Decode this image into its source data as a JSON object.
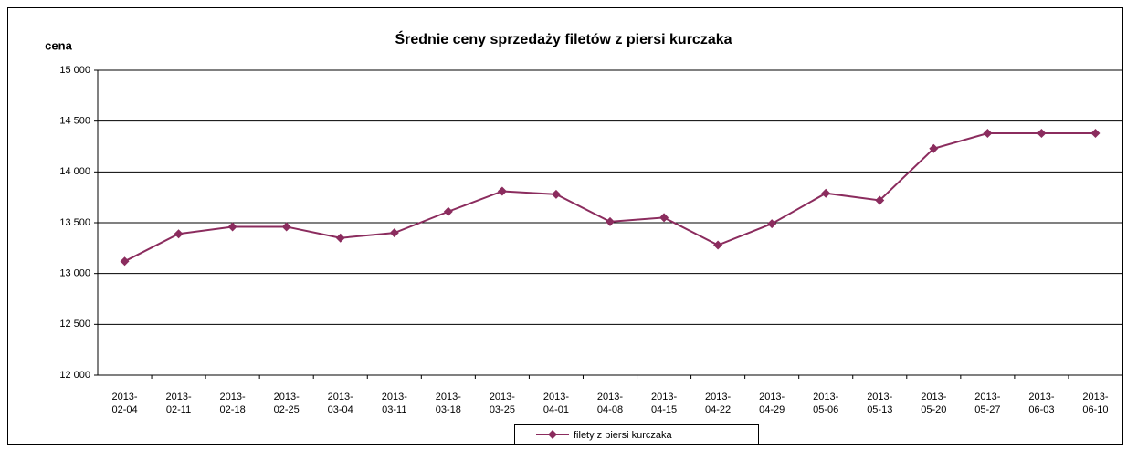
{
  "chart_data": {
    "type": "line",
    "title": "Średnie ceny sprzedaży filetów z piersi kurczaka",
    "y_label": "cena",
    "categories": [
      "2013-02-04",
      "2013-02-11",
      "2013-02-18",
      "2013-02-25",
      "2013-03-04",
      "2013-03-11",
      "2013-03-18",
      "2013-03-25",
      "2013-04-01",
      "2013-04-08",
      "2013-04-15",
      "2013-04-22",
      "2013-04-29",
      "2013-05-06",
      "2013-05-13",
      "2013-05-20",
      "2013-05-27",
      "2013-06-03",
      "2013-06-10"
    ],
    "series": [
      {
        "name": "filety z piersi kurczaka",
        "color": "#8b2c5e",
        "values": [
          13120,
          13390,
          13460,
          13460,
          13350,
          13400,
          13610,
          13810,
          13780,
          13510,
          13550,
          13280,
          13490,
          13790,
          13720,
          14230,
          14380,
          14380,
          14380
        ]
      }
    ],
    "ylim": [
      12000,
      15000
    ],
    "yticks": [
      {
        "value": 12000,
        "label": "12 000"
      },
      {
        "value": 12500,
        "label": "12 500"
      },
      {
        "value": 13000,
        "label": "13 000"
      },
      {
        "value": 13500,
        "label": "13 500"
      },
      {
        "value": 14000,
        "label": "14 000"
      },
      {
        "value": 14500,
        "label": "14 500"
      },
      {
        "value": 15000,
        "label": "15 000"
      }
    ],
    "grid": true,
    "legend": "bottom"
  }
}
